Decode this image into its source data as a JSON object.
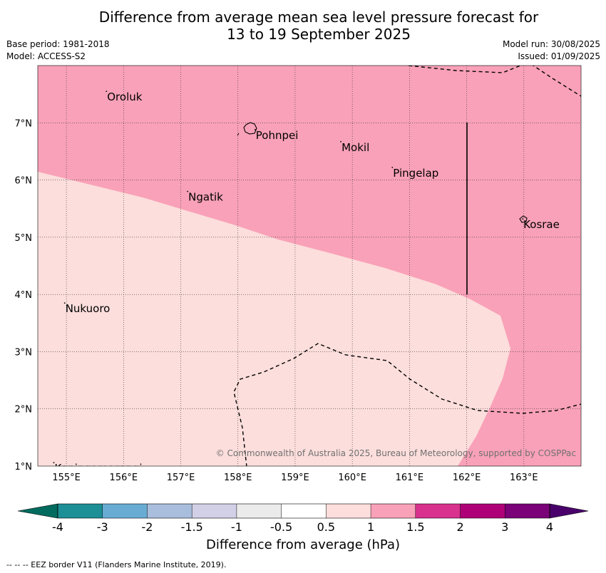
{
  "title": {
    "line1": "Difference from average mean sea level pressure forecast for",
    "line2": "13 to 19 September 2025"
  },
  "info": {
    "base_period": "Base period: 1981-2018",
    "model": "Model: ACCESS-S2",
    "model_run": "Model run: 30/08/2025",
    "issued": "Issued: 01/09/2025"
  },
  "map": {
    "lon_range": [
      154.5,
      164.0
    ],
    "lat_range": [
      1.0,
      8.0
    ],
    "lon_ticks": [
      "155°E",
      "156°E",
      "157°E",
      "158°E",
      "159°E",
      "160°E",
      "161°E",
      "162°E",
      "163°E"
    ],
    "lat_ticks": [
      "1°N",
      "2°N",
      "3°N",
      "4°N",
      "5°N",
      "6°N",
      "7°N"
    ],
    "places": [
      {
        "name": "Oroluk",
        "lon": 155.7,
        "lat": 7.55
      },
      {
        "name": "Pohnpei",
        "lon": 158.3,
        "lat": 6.88
      },
      {
        "name": "Mokil",
        "lon": 159.8,
        "lat": 6.67
      },
      {
        "name": "Pingelap",
        "lon": 160.7,
        "lat": 6.22
      },
      {
        "name": "Ngatik",
        "lon": 157.12,
        "lat": 5.8
      },
      {
        "name": "Kosrae",
        "lon": 162.98,
        "lat": 5.32
      },
      {
        "name": "Nukuoro",
        "lon": 154.97,
        "lat": 3.85
      },
      {
        "name": "Kapingamarangi",
        "lon": 154.78,
        "lat": 1.06
      }
    ],
    "anomaly_fills": [
      {
        "range": "1 to 1.5",
        "color": "#f9a1b8"
      },
      {
        "range": "0.5 to 1",
        "color": "#fcdedc"
      }
    ],
    "copyright": "© Commonwealth of Australia 2025, Bureau of Meteorology, supported by COSPPac"
  },
  "colorbar": {
    "ticks": [
      "-4",
      "-3",
      "-2",
      "-1.5",
      "-1",
      "-0.5",
      "0.5",
      "1",
      "1.5",
      "2",
      "3",
      "4"
    ],
    "colors": [
      "#006b5e",
      "#1d8f96",
      "#68acd3",
      "#a9bddc",
      "#d1d0e6",
      "#ebebeb",
      "#ffffff",
      "#fcdedc",
      "#f9a1b8",
      "#d8318e",
      "#ae0177",
      "#7a0177",
      "#49006a"
    ],
    "label": "Difference from average (hPa)"
  },
  "footnote": "--  --  -- EEZ border V11 (Flanders Marine Institute, 2019)."
}
